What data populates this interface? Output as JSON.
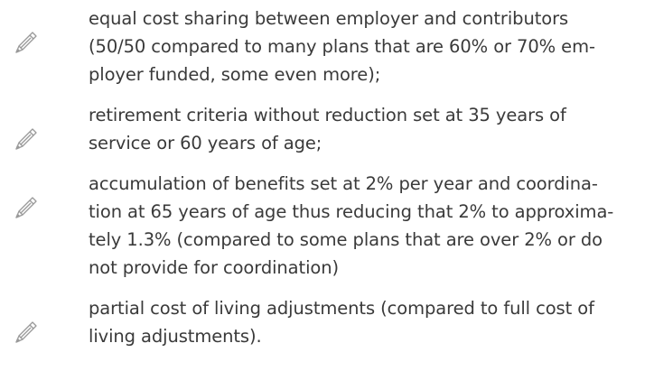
{
  "list": {
    "items": [
      {
        "lines": [
          "equal cost sharing between employer and contributors",
          "(50/50 compared to many plans that are 60% or 70% em-",
          "ployer funded, some even more);"
        ]
      },
      {
        "lines": [
          "retirement criteria without reduction set at 35 years of",
          "service or 60 years of age;"
        ]
      },
      {
        "lines": [
          "accumulation of benefits set at 2% per year and coordina-",
          "tion at 65 years of age thus reducing that 2% to approxima-",
          "tely 1.3% (compared to some plans that are over 2% or do",
          "not provide for coordination)"
        ]
      },
      {
        "lines": [
          "partial cost of living adjustments (compared to full cost of",
          "living adjustments)."
        ]
      }
    ]
  }
}
